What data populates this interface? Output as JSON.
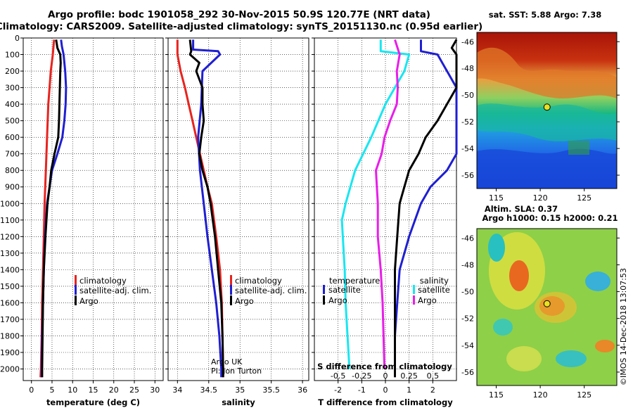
{
  "title_line1": "Argo profile: bodc 1901058_292 30-Nov-2015 50.9S 120.77E (NRT data)",
  "title_line2": "Climatology: CARS2009. Satellite-adjusted climatology: synTS_20151130.nc (0.95d earlier)",
  "credit": "Argo UK",
  "pi": "PI: Jon Turton",
  "sst_title": "sat. SST: 5.88 Argo: 7.38",
  "sla_title1": "Altim. SLA: 0.37",
  "sla_title2": "Argo h1000: 0.15 h2000: 0.21",
  "watermark": "©IMOS 14-Dec-2018 13:07:53",
  "colors": {
    "red": "#e8231e",
    "blue": "#1f1fd2",
    "black": "#000000",
    "cyan": "#19e6f0",
    "magenta": "#e81ee8"
  },
  "chart_data": [
    {
      "type": "line",
      "name": "temperature",
      "xlabel": "temperature (deg C)",
      "xlim": [
        -2,
        32
      ],
      "ylim": [
        0,
        2070
      ],
      "xticks": [
        0,
        5,
        10,
        15,
        20,
        25,
        30
      ],
      "yticks": [
        0,
        100,
        200,
        300,
        400,
        500,
        600,
        700,
        800,
        900,
        1000,
        1100,
        1200,
        1300,
        1400,
        1500,
        1600,
        1700,
        1800,
        1900,
        2000
      ],
      "legend": [
        "climatology",
        "satellite-adj. clim.",
        "Argo"
      ],
      "series": [
        {
          "name": "climatology",
          "color": "red",
          "depth": [
            10,
            100,
            200,
            400,
            600,
            800,
            1000,
            1200,
            1400,
            1600,
            1800,
            2000,
            2050
          ],
          "values": [
            5.5,
            5.2,
            4.7,
            4.1,
            3.8,
            3.5,
            3.2,
            3.0,
            2.8,
            2.6,
            2.5,
            2.3,
            2.2
          ]
        },
        {
          "name": "satellite-adj. clim.",
          "color": "blue",
          "depth": [
            10,
            50,
            100,
            200,
            300,
            400,
            500,
            600,
            700,
            800,
            1000,
            1200,
            1400,
            1600,
            1800,
            2000,
            2050
          ],
          "values": [
            7.2,
            7.4,
            7.8,
            8.2,
            8.4,
            8.3,
            8.0,
            7.5,
            6.3,
            5.0,
            3.8,
            3.3,
            3.0,
            2.8,
            2.6,
            2.5,
            2.5
          ]
        },
        {
          "name": "Argo",
          "color": "black",
          "depth": [
            10,
            60,
            100,
            150,
            200,
            300,
            400,
            500,
            600,
            700,
            800,
            900,
            1000,
            1200,
            1400,
            1600,
            1800,
            2000,
            2050
          ],
          "values": [
            6.0,
            6.3,
            7.0,
            7.1,
            7.0,
            6.9,
            6.8,
            6.7,
            6.5,
            5.6,
            4.8,
            4.4,
            3.9,
            3.4,
            3.0,
            2.8,
            2.7,
            2.6,
            2.6
          ]
        }
      ]
    },
    {
      "type": "line",
      "name": "salinity",
      "xlabel": "salinity",
      "xlim": [
        33.85,
        36.1
      ],
      "ylim": [
        0,
        2070
      ],
      "xticks": [
        34,
        34.5,
        35,
        35.5,
        36
      ],
      "legend": [
        "climatology",
        "satellite-adj. clim.",
        "Argo"
      ],
      "series": [
        {
          "name": "climatology",
          "color": "red",
          "depth": [
            10,
            100,
            200,
            300,
            400,
            500,
            600,
            700,
            800,
            900,
            1000,
            1200,
            1400,
            1600,
            1800,
            2000,
            2050
          ],
          "values": [
            34.0,
            34.0,
            34.05,
            34.12,
            34.18,
            34.24,
            34.3,
            34.36,
            34.42,
            34.48,
            34.55,
            34.62,
            34.68,
            34.71,
            34.72,
            34.73,
            34.73
          ]
        },
        {
          "name": "satellite-adj. clim.",
          "color": "blue",
          "depth": [
            10,
            70,
            80,
            100,
            200,
            400,
            600,
            800,
            1000,
            1200,
            1400,
            1600,
            1800,
            2000,
            2050
          ],
          "values": [
            34.25,
            34.25,
            34.65,
            34.68,
            34.4,
            34.38,
            34.33,
            34.36,
            34.42,
            34.48,
            34.55,
            34.62,
            34.67,
            34.7,
            34.7
          ]
        },
        {
          "name": "Argo",
          "color": "black",
          "depth": [
            10,
            80,
            100,
            150,
            200,
            300,
            400,
            500,
            600,
            700,
            800,
            900,
            1000,
            1200,
            1400,
            1600,
            1800,
            2000,
            2050
          ],
          "values": [
            34.2,
            34.22,
            34.2,
            34.35,
            34.3,
            34.4,
            34.4,
            34.42,
            34.38,
            34.35,
            34.4,
            34.48,
            34.53,
            34.6,
            34.65,
            34.7,
            34.72,
            34.73,
            34.73
          ]
        }
      ]
    },
    {
      "type": "line",
      "name": "difference",
      "xlabel": "T difference from climatology",
      "xlabel_top": "S difference from climatology",
      "xlim": [
        -3,
        3
      ],
      "ylim": [
        0,
        2070
      ],
      "xticks": [
        -2,
        -1,
        0,
        1,
        2
      ],
      "xticks_top": [
        -0.5,
        -0.25,
        0,
        0.25,
        0.5
      ],
      "xticks_top_labels": [
        "-0.5",
        "-0.25",
        "0",
        "0.25",
        "0.5"
      ],
      "legend_left_title": "temperature",
      "legend_right_title": "salinity",
      "legend": [
        "satellite",
        "Argo",
        "satellite",
        "Argo"
      ],
      "series": [
        {
          "name": "temperature satellite",
          "color": "blue",
          "depth": [
            10,
            80,
            100,
            300,
            500,
            600,
            700,
            800,
            900,
            1000,
            1200,
            1400,
            1600,
            1800,
            2000,
            2050
          ],
          "values": [
            1.5,
            1.5,
            2.2,
            3.0,
            3.5,
            3.7,
            3.3,
            2.6,
            1.9,
            1.5,
            1.0,
            0.6,
            0.5,
            0.4,
            0.4,
            0.4
          ]
        },
        {
          "name": "temperature Argo",
          "color": "black",
          "depth": [
            10,
            60,
            100,
            200,
            300,
            400,
            500,
            600,
            700,
            800,
            900,
            1000,
            1200,
            1400,
            1600,
            1800,
            2000,
            2050
          ],
          "values": [
            3.0,
            2.8,
            3.0,
            3.0,
            3.0,
            2.6,
            2.2,
            1.7,
            1.4,
            1.0,
            0.8,
            0.6,
            0.5,
            0.4,
            0.4,
            0.4,
            0.4,
            0.4
          ]
        },
        {
          "name": "salinity satellite",
          "color": "cyan",
          "depth": [
            10,
            80,
            100,
            200,
            400,
            600,
            800,
            1000,
            1100,
            1200,
            1400,
            1600,
            1800,
            1900,
            2000
          ],
          "values": [
            -0.05,
            -0.05,
            0.25,
            0.2,
            0.0,
            -0.15,
            -0.32,
            -0.42,
            -0.46,
            -0.45,
            -0.43,
            -0.42,
            -0.4,
            -0.39,
            -0.38
          ]
        },
        {
          "name": "salinity Argo",
          "color": "magenta",
          "depth": [
            10,
            100,
            200,
            300,
            400,
            500,
            600,
            700,
            800,
            1000,
            1200,
            1400,
            1600,
            1800,
            2000
          ],
          "values": [
            0.1,
            0.15,
            0.12,
            0.13,
            0.12,
            0.05,
            -0.01,
            -0.04,
            -0.1,
            -0.08,
            -0.08,
            -0.05,
            -0.03,
            -0.02,
            -0.01
          ]
        }
      ]
    },
    {
      "type": "heatmap",
      "name": "sat-sst-map",
      "xlim": [
        112.8,
        128.7
      ],
      "ylim": [
        -57,
        -45.3
      ],
      "xticks": [
        115,
        120,
        125
      ],
      "yticks": [
        -46,
        -48,
        -50,
        -52,
        -54,
        -56
      ],
      "marker": {
        "lon": 120.77,
        "lat": -50.9
      }
    },
    {
      "type": "heatmap",
      "name": "sla-map",
      "xlim": [
        112.8,
        128.7
      ],
      "ylim": [
        -57,
        -45.3
      ],
      "xticks": [
        115,
        120,
        125
      ],
      "yticks": [
        -46,
        -48,
        -50,
        -52,
        -54,
        -56
      ],
      "marker": {
        "lon": 120.77,
        "lat": -50.9
      }
    }
  ]
}
